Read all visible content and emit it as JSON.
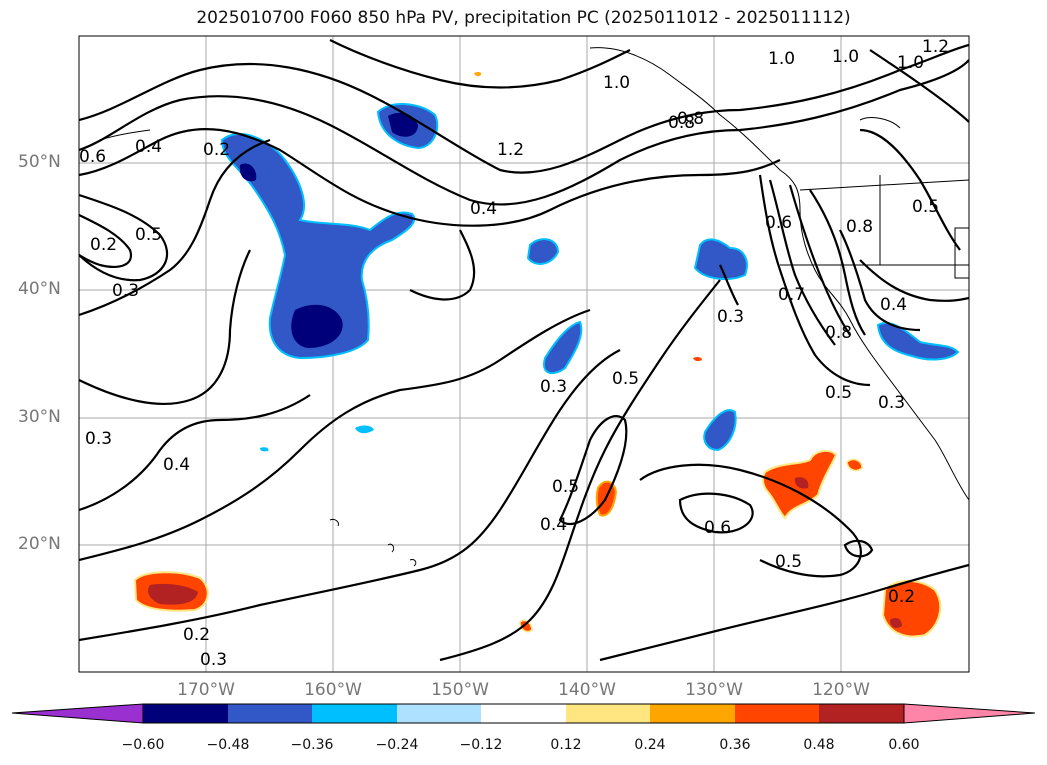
{
  "title": "2025010700 F060 850 hPa PV, precipitation PC (2025011012 - 2025011112)",
  "lat_labels": [
    "50°N",
    "40°N",
    "30°N",
    "20°N"
  ],
  "lon_labels": [
    "170°W",
    "160°W",
    "150°W",
    "140°W",
    "130°W",
    "120°W"
  ],
  "contour_labels": [
    "0.6",
    "0.4",
    "0.2",
    "0.5",
    "0.2",
    "0.3",
    "1.2",
    "1.0",
    "1.0",
    "1.0",
    "1.0",
    "1.2",
    "0.8",
    "0.4",
    "0.6",
    "0.8",
    "0.7",
    "0.8",
    "0.5",
    "0.4",
    "0.5",
    "0.3",
    "0.3",
    "0.5",
    "0.3",
    "0.3",
    "0.4",
    "0.5",
    "0.4",
    "0.6",
    "0.5",
    "0.2",
    "0.2",
    "0.3",
    "0.8"
  ],
  "colorbar": {
    "ticks": [
      "−0.60",
      "−0.48",
      "−0.36",
      "−0.24",
      "−0.12",
      "0.12",
      "0.24",
      "0.36",
      "0.48",
      "0.60"
    ],
    "colors": [
      "#9b30d0",
      "#00007a",
      "#3258c8",
      "#00bfff",
      "#aee0ff",
      "#ffffff",
      "#ffe680",
      "#ffa500",
      "#ff4500",
      "#b22222",
      "#ff85a8"
    ]
  },
  "map_layers": {
    "contour_field": "850 hPa PV",
    "shaded_field": "precipitation PC"
  }
}
